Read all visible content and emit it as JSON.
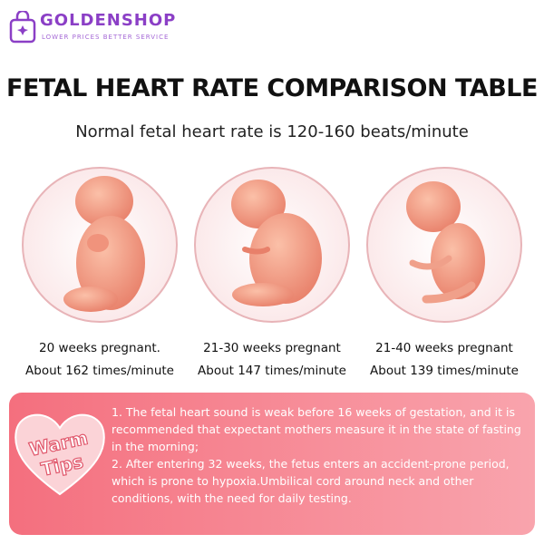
{
  "header": {
    "brand": "GOLDENSHOP",
    "tagline": "LOWER PRICES BETTER SERVICE"
  },
  "title": "FETAL HEART RATE COMPARISON TABLE",
  "subtitle": "Normal fetal heart rate is 120-160 beats/minute",
  "stages": [
    {
      "label": "20 weeks pregnant.",
      "rate": "About 162 times/minute"
    },
    {
      "label": "21-30 weeks pregnant",
      "rate": "About 147 times/minute"
    },
    {
      "label": "21-40 weeks pregnant",
      "rate": "About 139 times/minute"
    }
  ],
  "tips": {
    "badge": [
      "Warm",
      "Tips"
    ],
    "items": [
      "1. The fetal heart sound is weak before 16 weeks of gestation, and it is recommended that expectant mothers measure it in the state of fasting in the morning;",
      "2. After entering 32 weeks, the fetus enters an accident-prone period, which is prone to hypoxia.Umbilical cord around neck and other conditions, with the need for daily testing."
    ]
  }
}
